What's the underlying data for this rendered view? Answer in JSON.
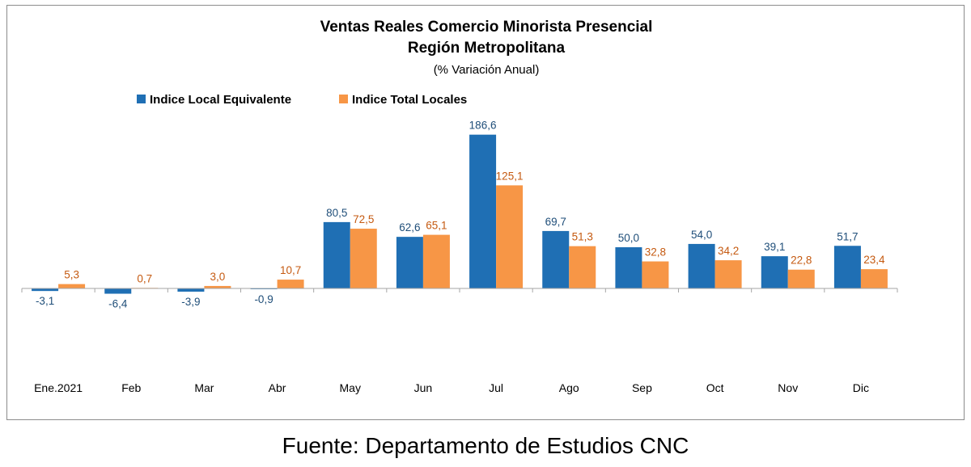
{
  "chart_data": {
    "type": "bar",
    "title": "Ventas Reales Comercio Minorista Presencial",
    "title_line2": "Región Metropolitana",
    "subtitle": "(% Variación Anual)",
    "categories": [
      "Ene.2021",
      "Feb",
      "Mar",
      "Abr",
      "May",
      "Jun",
      "Jul",
      "Ago",
      "Sep",
      "Oct",
      "Nov",
      "Dic"
    ],
    "series": [
      {
        "name": "Indice Local Equivalente",
        "color": "#1f6fb4",
        "label_color": "#1f4e79",
        "values": [
          -3.1,
          -6.4,
          -3.9,
          -0.9,
          80.5,
          62.6,
          186.6,
          69.7,
          50.0,
          54.0,
          39.1,
          51.7
        ],
        "labels": [
          "-3,1",
          "-6,4",
          "-3,9",
          "-0,9",
          "80,5",
          "62,6",
          "186,6",
          "69,7",
          "50,0",
          "54,0",
          "39,1",
          "51,7"
        ]
      },
      {
        "name": "Indice Total Locales",
        "color": "#f79646",
        "label_color": "#c55a11",
        "values": [
          5.3,
          0.7,
          3.0,
          10.7,
          72.5,
          65.1,
          125.1,
          51.3,
          32.8,
          34.2,
          22.8,
          23.4
        ],
        "labels": [
          "5,3",
          "0,7",
          "3,0",
          "10,7",
          "72,5",
          "65,1",
          "125,1",
          "51,3",
          "32,8",
          "34,2",
          "22,8",
          "23,4"
        ]
      }
    ],
    "legend_position": "top-left",
    "grid": false,
    "ylim": [
      -100,
      200
    ]
  },
  "source": "Fuente: Departamento de Estudios CNC"
}
